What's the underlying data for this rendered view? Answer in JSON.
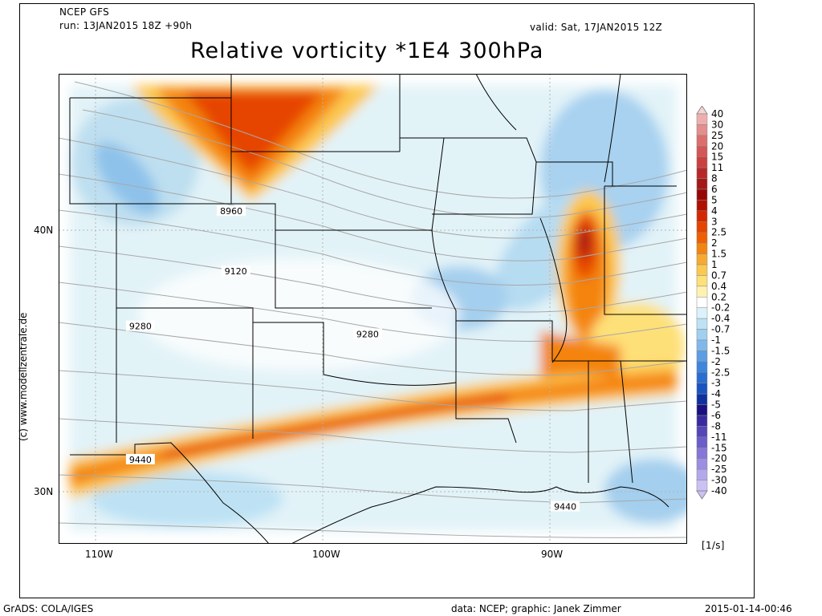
{
  "header": {
    "model": "NCEP GFS",
    "run": "run: 13JAN2015 18Z +90h",
    "valid": "valid: Sat, 17JAN2015 12Z",
    "title": "Relative vorticity *1E4 300hPa"
  },
  "axes": {
    "lat_labels": [
      "40N",
      "30N"
    ],
    "lon_labels": [
      "110W",
      "100W",
      "90W"
    ]
  },
  "contour_labels": [
    {
      "text": "8960",
      "lon": -104.0,
      "lat": 43.3
    },
    {
      "text": "9120",
      "lon": -103.8,
      "lat": 41.0
    },
    {
      "text": "9280",
      "lon": -108.0,
      "lat": 38.9
    },
    {
      "text": "9280",
      "lon": -98.0,
      "lat": 38.6
    },
    {
      "text": "9440",
      "lon": -108.0,
      "lat": 33.8
    },
    {
      "text": "9440",
      "lon": -89.3,
      "lat": 32.0
    }
  ],
  "credit": "(c) www.modellzentrale.de",
  "units": "[1/s]",
  "footer": {
    "left": "GrADS: COLA/IGES",
    "center": "data: NCEP; graphic: Janek Zimmer",
    "right": "2015-01-14-00:46"
  },
  "legend": {
    "labels": [
      "40",
      "30",
      "25",
      "20",
      "15",
      "11",
      "8",
      "6",
      "5",
      "4",
      "3",
      "2.5",
      "2",
      "1.5",
      "1",
      "0.7",
      "0.4",
      "0.2",
      "-0.2",
      "-0.4",
      "-0.7",
      "-1",
      "-1.5",
      "-2",
      "-2.5",
      "-3",
      "-4",
      "-5",
      "-6",
      "-8",
      "-11",
      "-15",
      "-20",
      "-25",
      "-30",
      "-40"
    ],
    "colors": [
      "#f6d4d4",
      "#eeaeae",
      "#e48e8e",
      "#dc6e6e",
      "#d45656",
      "#cc4040",
      "#b82828",
      "#a41818",
      "#960808",
      "#b01000",
      "#d42800",
      "#e64400",
      "#f06000",
      "#f48410",
      "#f8aa30",
      "#fcc850",
      "#fee078",
      "#fff2b0",
      "#ffffff",
      "#dcf2fa",
      "#bee2f4",
      "#a0cff0",
      "#80b8ea",
      "#5c9ee4",
      "#3e86dc",
      "#2a6ed2",
      "#1a54c0",
      "#1030a0",
      "#1a1080",
      "#3a2aa0",
      "#5246b8",
      "#6a5ec8",
      "#8676d8",
      "#9c8ee2",
      "#b4a8ec",
      "#ccc0f4"
    ]
  },
  "colors": {
    "frame": "#000000",
    "border": "#000000",
    "contour": "#a8a8a8",
    "grid": "#b4b4b4"
  }
}
